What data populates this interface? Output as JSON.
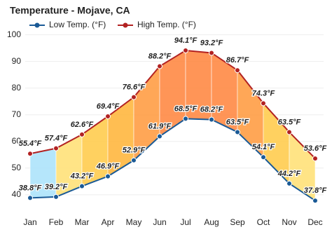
{
  "chart_data": {
    "type": "line",
    "title": "Temperature - Mojave, CA",
    "categories": [
      "Jan",
      "Feb",
      "Mar",
      "Apr",
      "May",
      "Jun",
      "Jul",
      "Aug",
      "Sep",
      "Oct",
      "Nov",
      "Dec"
    ],
    "series": [
      {
        "name": "Low Temp. (°F)",
        "color": "#1a5a96",
        "values": [
          38.8,
          39.2,
          43.2,
          46.9,
          52.9,
          61.9,
          68.5,
          68.2,
          63.5,
          54.1,
          44.2,
          37.8
        ],
        "value_labels": [
          "38.8°F",
          "39.2°F",
          "43.2°F",
          "46.9°F",
          "52.9°F",
          "61.9°F",
          "68.5°F",
          "68.2°F",
          "63.5°F",
          "54.1°F",
          "44.2°F",
          "37.8°F"
        ]
      },
      {
        "name": "High Temp. (°F)",
        "color": "#b22222",
        "values": [
          55.4,
          57.4,
          62.6,
          69.4,
          76.6,
          88.2,
          94.1,
          93.2,
          86.7,
          74.3,
          63.5,
          53.6
        ],
        "value_labels": [
          "55.4°F",
          "57.4°F",
          "62.6°F",
          "69.4°F",
          "76.6°F",
          "88.2°F",
          "94.1°F",
          "93.2°F",
          "86.7°F",
          "74.3°F",
          "63.5°F",
          "53.6°F"
        ]
      }
    ],
    "ylim": [
      34.7,
      102
    ],
    "yticks": [
      40,
      50,
      60,
      70,
      80,
      90,
      100
    ],
    "grid": true,
    "legend": "top-left"
  }
}
